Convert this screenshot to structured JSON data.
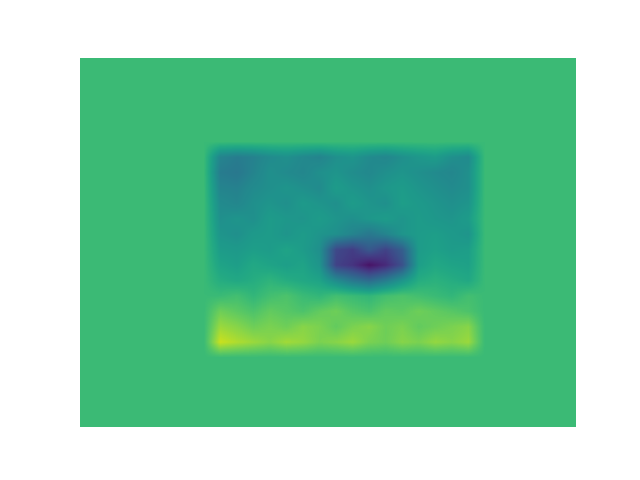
{
  "chart_data": {
    "type": "heatmap",
    "tick_labels": false,
    "color_range": [
      0,
      1
    ],
    "cells": [
      [
        0.68,
        0.68,
        0.68,
        0.68,
        0.68,
        0.68,
        0.68,
        0.68,
        0.68,
        0.68,
        0.68,
        0.68,
        0.68,
        0.68,
        0.68,
        0.68,
        0.68,
        0.68,
        0.68,
        0.68,
        0.68,
        0.68,
        0.68,
        0.68,
        0.68,
        0.68,
        0.68,
        0.68,
        0.68,
        0.68
      ],
      [
        0.68,
        0.68,
        0.68,
        0.68,
        0.68,
        0.68,
        0.68,
        0.68,
        0.68,
        0.68,
        0.68,
        0.68,
        0.68,
        0.68,
        0.68,
        0.68,
        0.68,
        0.68,
        0.68,
        0.68,
        0.68,
        0.68,
        0.68,
        0.68,
        0.68,
        0.68,
        0.68,
        0.68,
        0.68,
        0.68
      ],
      [
        0.68,
        0.68,
        0.68,
        0.68,
        0.68,
        0.68,
        0.68,
        0.68,
        0.68,
        0.68,
        0.68,
        0.68,
        0.68,
        0.68,
        0.68,
        0.68,
        0.68,
        0.68,
        0.68,
        0.68,
        0.68,
        0.68,
        0.68,
        0.68,
        0.68,
        0.68,
        0.68,
        0.68,
        0.68,
        0.68
      ],
      [
        0.68,
        0.68,
        0.68,
        0.68,
        0.68,
        0.68,
        0.68,
        0.68,
        0.68,
        0.68,
        0.68,
        0.68,
        0.68,
        0.68,
        0.68,
        0.68,
        0.68,
        0.68,
        0.68,
        0.68,
        0.68,
        0.68,
        0.68,
        0.68,
        0.68,
        0.68,
        0.68,
        0.68,
        0.68,
        0.68
      ],
      [
        0.68,
        0.68,
        0.68,
        0.68,
        0.68,
        0.68,
        0.68,
        0.68,
        0.68,
        0.68,
        0.68,
        0.68,
        0.68,
        0.68,
        0.68,
        0.68,
        0.68,
        0.68,
        0.68,
        0.68,
        0.68,
        0.68,
        0.68,
        0.68,
        0.68,
        0.68,
        0.68,
        0.68,
        0.68,
        0.68
      ],
      [
        0.68,
        0.68,
        0.68,
        0.68,
        0.68,
        0.68,
        0.68,
        0.68,
        0.68,
        0.68,
        0.68,
        0.68,
        0.68,
        0.68,
        0.68,
        0.68,
        0.68,
        0.68,
        0.68,
        0.68,
        0.68,
        0.68,
        0.68,
        0.68,
        0.68,
        0.68,
        0.68,
        0.68,
        0.68,
        0.68
      ],
      [
        0.68,
        0.68,
        0.68,
        0.68,
        0.68,
        0.68,
        0.68,
        0.68,
        0.45,
        0.42,
        0.44,
        0.48,
        0.5,
        0.47,
        0.45,
        0.5,
        0.52,
        0.48,
        0.46,
        0.5,
        0.53,
        0.55,
        0.5,
        0.48,
        0.68,
        0.68,
        0.68,
        0.68,
        0.68,
        0.68
      ],
      [
        0.68,
        0.68,
        0.68,
        0.68,
        0.68,
        0.68,
        0.68,
        0.68,
        0.42,
        0.4,
        0.45,
        0.5,
        0.48,
        0.46,
        0.5,
        0.52,
        0.49,
        0.47,
        0.5,
        0.52,
        0.5,
        0.48,
        0.46,
        0.5,
        0.68,
        0.68,
        0.68,
        0.68,
        0.68,
        0.68
      ],
      [
        0.68,
        0.68,
        0.68,
        0.68,
        0.68,
        0.68,
        0.68,
        0.68,
        0.45,
        0.44,
        0.48,
        0.5,
        0.52,
        0.5,
        0.48,
        0.55,
        0.52,
        0.5,
        0.53,
        0.55,
        0.52,
        0.5,
        0.48,
        0.5,
        0.68,
        0.68,
        0.68,
        0.68,
        0.68,
        0.68
      ],
      [
        0.68,
        0.68,
        0.68,
        0.68,
        0.68,
        0.68,
        0.68,
        0.68,
        0.48,
        0.46,
        0.5,
        0.52,
        0.5,
        0.54,
        0.52,
        0.5,
        0.55,
        0.52,
        0.5,
        0.56,
        0.54,
        0.52,
        0.5,
        0.52,
        0.68,
        0.68,
        0.68,
        0.68,
        0.68,
        0.68
      ],
      [
        0.68,
        0.68,
        0.68,
        0.68,
        0.68,
        0.68,
        0.68,
        0.68,
        0.5,
        0.52,
        0.5,
        0.55,
        0.53,
        0.52,
        0.55,
        0.52,
        0.5,
        0.53,
        0.55,
        0.52,
        0.55,
        0.53,
        0.52,
        0.55,
        0.68,
        0.68,
        0.68,
        0.68,
        0.68,
        0.68
      ],
      [
        0.68,
        0.68,
        0.68,
        0.68,
        0.68,
        0.68,
        0.68,
        0.68,
        0.52,
        0.5,
        0.54,
        0.55,
        0.52,
        0.55,
        0.52,
        0.5,
        0.45,
        0.4,
        0.45,
        0.52,
        0.55,
        0.56,
        0.54,
        0.52,
        0.68,
        0.68,
        0.68,
        0.68,
        0.68,
        0.68
      ],
      [
        0.68,
        0.68,
        0.68,
        0.68,
        0.68,
        0.68,
        0.68,
        0.68,
        0.55,
        0.54,
        0.56,
        0.55,
        0.58,
        0.55,
        0.5,
        0.22,
        0.18,
        0.28,
        0.2,
        0.3,
        0.55,
        0.57,
        0.55,
        0.56,
        0.68,
        0.68,
        0.68,
        0.68,
        0.68,
        0.68
      ],
      [
        0.68,
        0.68,
        0.68,
        0.68,
        0.68,
        0.68,
        0.68,
        0.68,
        0.58,
        0.56,
        0.6,
        0.58,
        0.56,
        0.58,
        0.52,
        0.2,
        0.15,
        0.05,
        0.12,
        0.25,
        0.56,
        0.6,
        0.58,
        0.57,
        0.68,
        0.68,
        0.68,
        0.68,
        0.68,
        0.68
      ],
      [
        0.68,
        0.68,
        0.68,
        0.68,
        0.68,
        0.68,
        0.68,
        0.68,
        0.62,
        0.6,
        0.62,
        0.65,
        0.62,
        0.6,
        0.58,
        0.48,
        0.4,
        0.35,
        0.42,
        0.52,
        0.62,
        0.64,
        0.62,
        0.6,
        0.68,
        0.68,
        0.68,
        0.68,
        0.68,
        0.68
      ],
      [
        0.68,
        0.68,
        0.68,
        0.68,
        0.68,
        0.68,
        0.68,
        0.68,
        0.68,
        0.7,
        0.66,
        0.7,
        0.72,
        0.68,
        0.66,
        0.7,
        0.68,
        0.66,
        0.7,
        0.72,
        0.7,
        0.68,
        0.66,
        0.7,
        0.68,
        0.68,
        0.68,
        0.68,
        0.68,
        0.68
      ],
      [
        0.68,
        0.68,
        0.68,
        0.68,
        0.68,
        0.68,
        0.68,
        0.68,
        0.78,
        0.75,
        0.72,
        0.76,
        0.74,
        0.72,
        0.76,
        0.78,
        0.74,
        0.72,
        0.76,
        0.75,
        0.78,
        0.76,
        0.74,
        0.72,
        0.68,
        0.68,
        0.68,
        0.68,
        0.68,
        0.68
      ],
      [
        0.68,
        0.68,
        0.68,
        0.68,
        0.68,
        0.68,
        0.68,
        0.68,
        0.85,
        0.82,
        0.78,
        0.8,
        0.78,
        0.82,
        0.8,
        0.76,
        0.8,
        0.82,
        0.78,
        0.8,
        0.76,
        0.78,
        0.8,
        0.82,
        0.68,
        0.68,
        0.68,
        0.68,
        0.68,
        0.68
      ],
      [
        0.68,
        0.68,
        0.68,
        0.68,
        0.68,
        0.68,
        0.68,
        0.68,
        0.92,
        0.88,
        0.85,
        0.82,
        0.86,
        0.84,
        0.8,
        0.82,
        0.85,
        0.8,
        0.78,
        0.82,
        0.8,
        0.84,
        0.82,
        0.85,
        0.68,
        0.68,
        0.68,
        0.68,
        0.68,
        0.68
      ],
      [
        0.68,
        0.68,
        0.68,
        0.68,
        0.68,
        0.68,
        0.68,
        0.68,
        0.68,
        0.68,
        0.68,
        0.68,
        0.68,
        0.68,
        0.68,
        0.68,
        0.68,
        0.68,
        0.68,
        0.68,
        0.68,
        0.68,
        0.68,
        0.68,
        0.68,
        0.68,
        0.68,
        0.68,
        0.68,
        0.68
      ],
      [
        0.68,
        0.68,
        0.68,
        0.68,
        0.68,
        0.68,
        0.68,
        0.68,
        0.68,
        0.68,
        0.68,
        0.68,
        0.68,
        0.68,
        0.68,
        0.68,
        0.68,
        0.68,
        0.68,
        0.68,
        0.68,
        0.68,
        0.68,
        0.68,
        0.68,
        0.68,
        0.68,
        0.68,
        0.68,
        0.68
      ],
      [
        0.68,
        0.68,
        0.68,
        0.68,
        0.68,
        0.68,
        0.68,
        0.68,
        0.68,
        0.68,
        0.68,
        0.68,
        0.68,
        0.68,
        0.68,
        0.68,
        0.68,
        0.68,
        0.68,
        0.68,
        0.68,
        0.68,
        0.68,
        0.68,
        0.68,
        0.68,
        0.68,
        0.68,
        0.68,
        0.68
      ],
      [
        0.68,
        0.68,
        0.68,
        0.68,
        0.68,
        0.68,
        0.68,
        0.68,
        0.68,
        0.68,
        0.68,
        0.68,
        0.68,
        0.68,
        0.68,
        0.68,
        0.68,
        0.68,
        0.68,
        0.68,
        0.68,
        0.68,
        0.68,
        0.68,
        0.68,
        0.68,
        0.68,
        0.68,
        0.68,
        0.68
      ],
      [
        0.68,
        0.68,
        0.68,
        0.68,
        0.68,
        0.68,
        0.68,
        0.68,
        0.68,
        0.68,
        0.68,
        0.68,
        0.68,
        0.68,
        0.68,
        0.68,
        0.68,
        0.68,
        0.68,
        0.68,
        0.68,
        0.68,
        0.68,
        0.68,
        0.68,
        0.68,
        0.68,
        0.68,
        0.68,
        0.68
      ]
    ]
  }
}
